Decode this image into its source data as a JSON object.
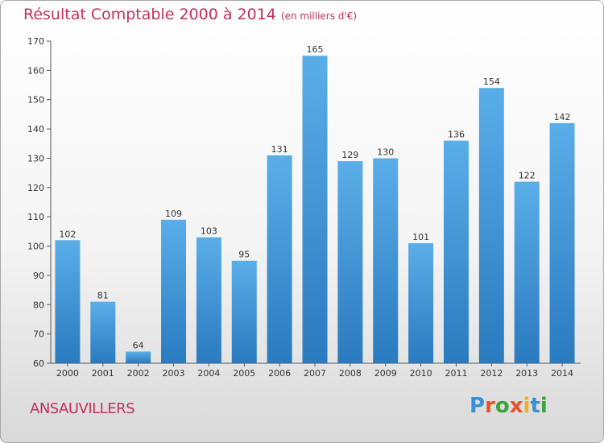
{
  "title": "Résultat Comptable 2000 à 2014",
  "subtitle": "(en milliers d'€)",
  "town": "ANSAUVILLERS",
  "logo": {
    "text": "Proxiti",
    "colors": [
      "#3a8fd6",
      "#e6532a",
      "#3aa33a",
      "#e6532a",
      "#f2b01e",
      "#3a8fd6",
      "#3aa33a"
    ]
  },
  "colors": {
    "bar_top": "#5aaee8",
    "bar_bottom": "#2a7abf",
    "title": "#c4305a"
  },
  "chart_data": {
    "type": "bar",
    "categories": [
      "2000",
      "2001",
      "2002",
      "2003",
      "2004",
      "2005",
      "2006",
      "2007",
      "2008",
      "2009",
      "2010",
      "2011",
      "2012",
      "2013",
      "2014"
    ],
    "values": [
      102,
      81,
      64,
      109,
      103,
      95,
      131,
      165,
      129,
      130,
      101,
      136,
      154,
      122,
      142
    ],
    "ylim": [
      60,
      170
    ],
    "yticks": [
      60,
      70,
      80,
      90,
      100,
      110,
      120,
      130,
      140,
      150,
      160,
      170
    ],
    "xlabel": "",
    "ylabel": "",
    "grid": false
  }
}
